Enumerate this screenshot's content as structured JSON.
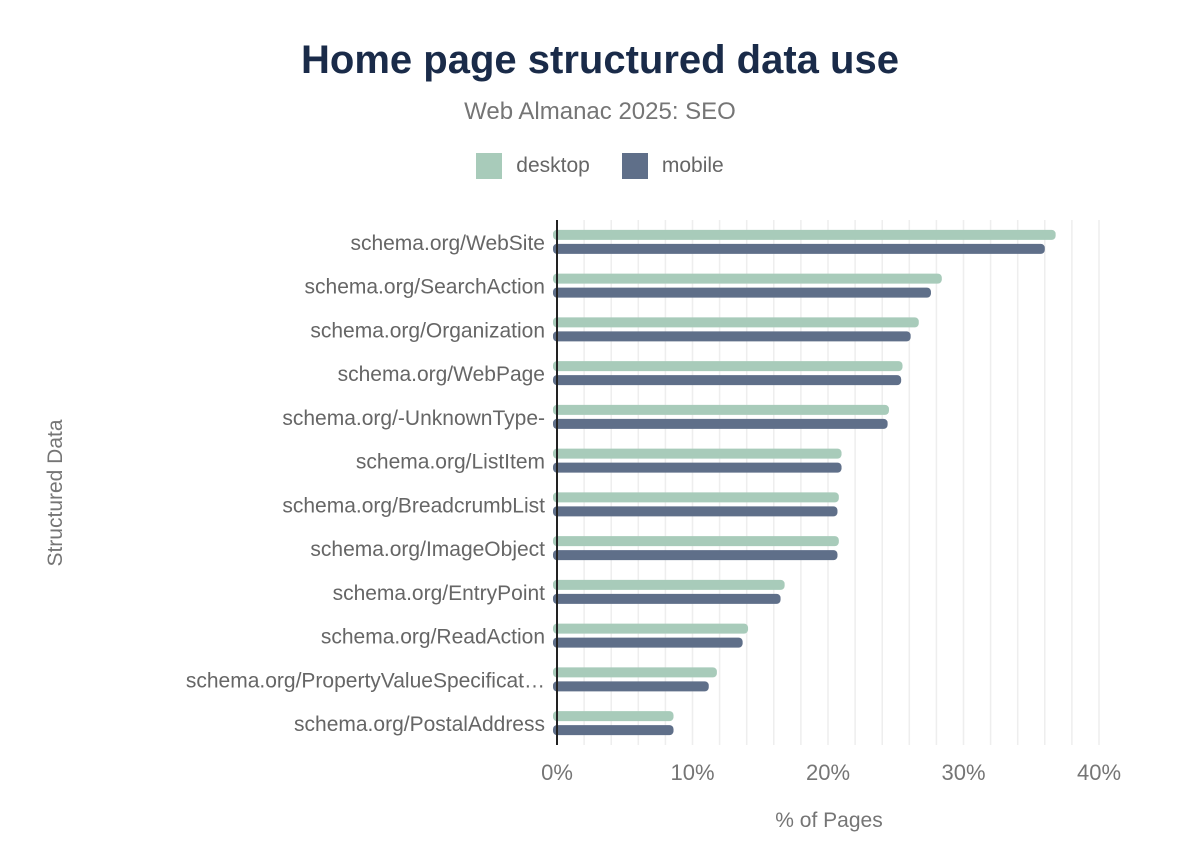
{
  "chart_data": {
    "type": "bar",
    "orientation": "horizontal",
    "title": "Home page structured data use",
    "subtitle": "Web Almanac 2025: SEO",
    "xlabel": "% of Pages",
    "ylabel": "Structured Data",
    "xlim": [
      0,
      40
    ],
    "xticks": [
      "0%",
      "10%",
      "20%",
      "30%",
      "40%"
    ],
    "grid": true,
    "legend_position": "top",
    "categories": [
      "schema.org/WebSite",
      "schema.org/SearchAction",
      "schema.org/Organization",
      "schema.org/WebPage",
      "schema.org/-UnknownType-",
      "schema.org/ListItem",
      "schema.org/BreadcrumbList",
      "schema.org/ImageObject",
      "schema.org/EntryPoint",
      "schema.org/ReadAction",
      "schema.org/PropertyValueSpecificat…",
      "schema.org/PostalAddress"
    ],
    "series": [
      {
        "name": "desktop",
        "color": "#a8cbba",
        "values": [
          36.8,
          28.4,
          26.7,
          25.5,
          24.5,
          21.0,
          20.8,
          20.8,
          16.8,
          14.1,
          11.8,
          8.6
        ]
      },
      {
        "name": "mobile",
        "color": "#5f6f89",
        "values": [
          36.0,
          27.6,
          26.1,
          25.4,
          24.4,
          21.0,
          20.7,
          20.7,
          16.5,
          13.7,
          11.2,
          8.6
        ]
      }
    ]
  }
}
